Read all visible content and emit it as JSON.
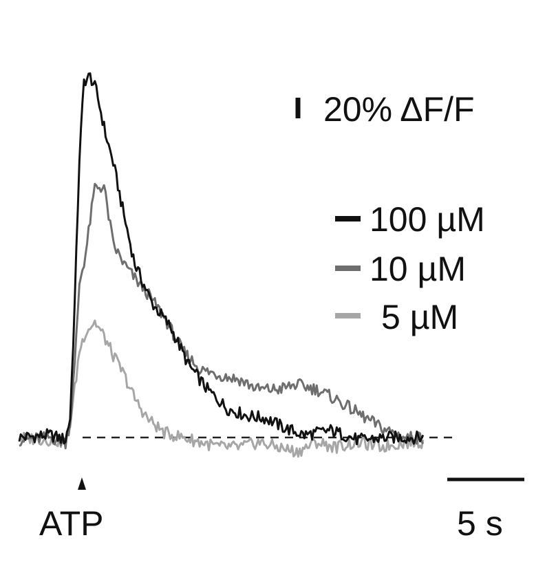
{
  "chart_data": {
    "type": "line",
    "baseline_style": "dashed",
    "stimulus_label": "ATP",
    "scale_bars": {
      "y": {
        "value": 20,
        "label": "20% ΔF/F"
      },
      "x": {
        "value": 5,
        "label": "5 s"
      }
    },
    "legend": [
      "100 µM",
      "10 µM",
      "5 µM"
    ],
    "series": [
      {
        "name": "100 µM",
        "color": "#111111",
        "t": [
          0,
          2,
          3,
          3.3,
          3.6,
          3.9,
          4.2,
          4.6,
          5.0,
          5.6,
          6.1,
          6.8,
          7.5,
          8.6,
          9.8,
          11.0,
          12.2,
          13.5,
          14.8,
          16.0,
          17.2,
          18.5,
          20.2,
          22.0,
          24.0,
          26.2
        ],
        "dff": [
          0,
          0.5,
          -0.5,
          4,
          28,
          58,
          74,
          75,
          72,
          63,
          57,
          46,
          36,
          28,
          23,
          15,
          10,
          6,
          4.5,
          4,
          2,
          0.5,
          1.5,
          -0.5,
          0,
          0
        ]
      },
      {
        "name": "10 µM",
        "color": "#6e6e6e",
        "t": [
          0,
          2,
          3,
          3.3,
          3.6,
          3.9,
          4.3,
          4.9,
          5.5,
          6.1,
          6.8,
          7.5,
          8.3,
          9.4,
          10.6,
          11.8,
          13.0,
          14.3,
          15.5,
          16.8,
          18.0,
          19.3,
          20.5,
          22.0,
          23.5,
          25.0,
          26.2
        ],
        "dff": [
          -0.5,
          0,
          -1,
          3,
          15,
          32,
          38,
          52,
          52,
          40,
          36,
          33,
          30,
          25,
          18,
          14,
          13,
          12,
          10,
          10,
          11,
          10,
          8,
          5,
          2,
          0,
          0
        ]
      },
      {
        "name": "5 µM",
        "color": "#a6a6a6",
        "t": [
          0,
          2,
          3,
          3.3,
          3.6,
          3.9,
          4.3,
          4.9,
          5.5,
          6.1,
          6.8,
          7.5,
          8.3,
          9.4,
          10.6,
          11.8,
          13.0,
          14.3,
          15.5,
          16.8,
          18.0,
          19.3,
          20.5,
          22.0,
          23.5,
          25.0,
          26.2
        ],
        "dff": [
          0,
          -0.5,
          -1,
          3,
          10,
          18,
          22,
          24,
          21,
          17,
          13,
          8,
          4,
          1,
          0,
          -1,
          -2,
          -2,
          -1,
          -2,
          -3,
          -1,
          -2,
          -1,
          -2,
          -1,
          -1
        ]
      }
    ]
  }
}
